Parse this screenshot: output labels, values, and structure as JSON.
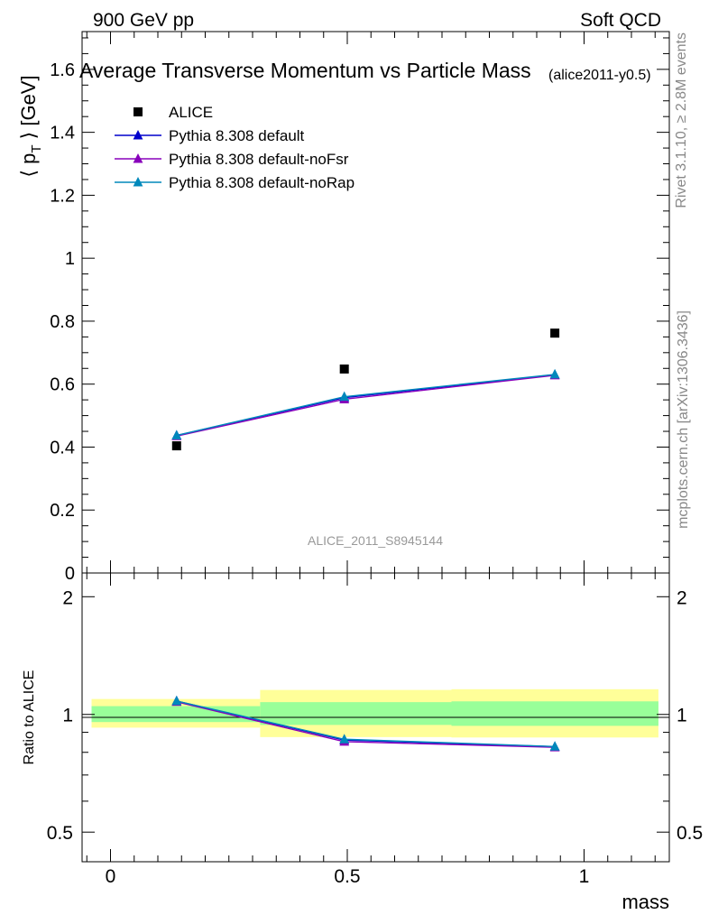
{
  "header": {
    "left": "900 GeV pp",
    "right": "Soft QCD"
  },
  "side": {
    "rivet": "Rivet 3.1.10, ≥ 2.8M events",
    "mcplots": "mcplots.cern.ch [arXiv:1306.3436]"
  },
  "chart_data": [
    {
      "type": "scatter",
      "panel": "main",
      "title": "Average Transverse Momentum vs Particle Mass",
      "subtitle": "(alice2011-y0.5)",
      "ylabel": "⟨ p_T ⟩ [GeV]",
      "ylabel_main": "⟨ p",
      "ylabel_sub": "T",
      "ylabel_tail": " ⟩ [GeV]",
      "watermark": "ALICE_2011_S8945144",
      "xlim": [
        -0.06,
        1.18
      ],
      "ylim": [
        0,
        1.72
      ],
      "yticks": [
        0,
        0.2,
        0.4,
        0.6,
        0.8,
        1,
        1.2,
        1.4,
        1.6
      ],
      "ytick_labels": [
        "0",
        "0.2",
        "0.4",
        "0.6",
        "0.8",
        "1",
        "1.2",
        "1.4",
        "1.6"
      ],
      "legend_position": "top-left",
      "series": [
        {
          "name": "ALICE",
          "marker": "square",
          "color": "#000000",
          "x": [
            0.1396,
            0.4937,
            0.9383
          ],
          "y": [
            0.404,
            0.648,
            0.762
          ]
        },
        {
          "name": "Pythia 8.308 default",
          "marker": "triangle",
          "color": "#0000cc",
          "x": [
            0.1396,
            0.4937,
            0.9383
          ],
          "y": [
            0.437,
            0.557,
            0.63
          ]
        },
        {
          "name": "Pythia 8.308 default-noFsr",
          "marker": "triangle",
          "color": "#8800bb",
          "x": [
            0.1396,
            0.4937,
            0.9383
          ],
          "y": [
            0.435,
            0.552,
            0.628
          ]
        },
        {
          "name": "Pythia 8.308 default-noRap",
          "marker": "triangle",
          "color": "#0088bb",
          "x": [
            0.1396,
            0.4937,
            0.9383
          ],
          "y": [
            0.437,
            0.56,
            0.631
          ]
        }
      ]
    },
    {
      "type": "scatter",
      "panel": "ratio",
      "ylabel": "Ratio to ALICE",
      "xlabel": "mass",
      "scale": "log",
      "xlim": [
        -0.06,
        1.18
      ],
      "ylim": [
        0.42,
        2.3
      ],
      "yticks": [
        0.5,
        1,
        2
      ],
      "ytick_labels": [
        "0.5",
        "1",
        "2"
      ],
      "xticks": [
        0,
        0.5,
        1
      ],
      "xtick_labels": [
        "0",
        "0.5",
        "1"
      ],
      "bands": [
        {
          "x": [
            -0.04,
            0.316
          ],
          "stat": [
            0.956,
            1.05
          ],
          "total": [
            0.925,
            1.095
          ]
        },
        {
          "x": [
            0.316,
            0.72
          ],
          "stat": [
            0.94,
            1.075
          ],
          "total": [
            0.875,
            1.155
          ]
        },
        {
          "x": [
            0.72,
            1.157
          ],
          "stat": [
            0.935,
            1.08
          ],
          "total": [
            0.873,
            1.16
          ]
        }
      ],
      "band_colors": {
        "stat": "#99ff99",
        "total": "#ffff99"
      },
      "series": [
        {
          "name": "Pythia 8.308 default",
          "color": "#0000cc",
          "x": [
            0.1396,
            0.4937,
            0.9383
          ],
          "y": [
            1.082,
            0.86,
            0.827
          ]
        },
        {
          "name": "Pythia 8.308 default-noFsr",
          "color": "#8800bb",
          "x": [
            0.1396,
            0.4937,
            0.9383
          ],
          "y": [
            1.077,
            0.852,
            0.824
          ]
        },
        {
          "name": "Pythia 8.308 default-noRap",
          "color": "#0088bb",
          "x": [
            0.1396,
            0.4937,
            0.9383
          ],
          "y": [
            1.082,
            0.864,
            0.828
          ]
        }
      ]
    }
  ]
}
